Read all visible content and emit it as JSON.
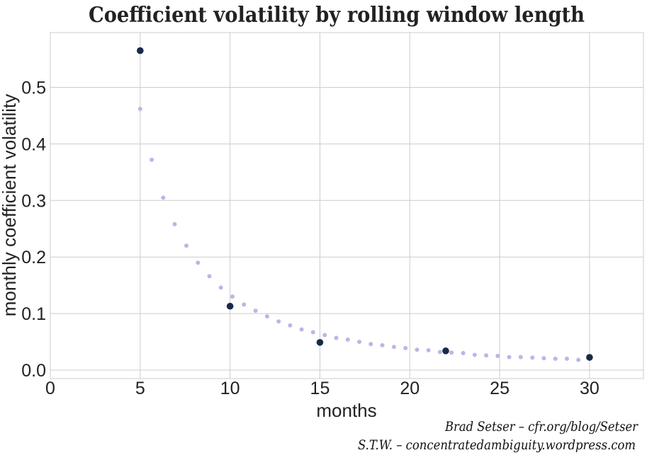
{
  "chart_data": {
    "type": "scatter",
    "title": "Coefficient volatility by rolling window length",
    "xlabel": "months",
    "ylabel": "monthly coefficient volatility",
    "xlim": [
      0,
      33
    ],
    "ylim": [
      -0.015,
      0.597
    ],
    "xticks": [
      0,
      5,
      10,
      15,
      20,
      25,
      30
    ],
    "yticks": [
      0.0,
      0.1,
      0.2,
      0.3,
      0.4,
      0.5
    ],
    "xtick_labels": [
      "0",
      "5",
      "10",
      "15",
      "20",
      "25",
      "30"
    ],
    "ytick_labels": [
      "0.0",
      "0.1",
      "0.2",
      "0.3",
      "0.4",
      "0.5"
    ],
    "grid": true,
    "legend": "none",
    "series": [
      {
        "color": "#bdb5e6",
        "x": [
          5.0,
          5.64,
          6.28,
          6.92,
          7.57,
          8.21,
          8.85,
          9.49,
          10.13,
          10.77,
          11.42,
          12.06,
          12.7,
          13.34,
          13.98,
          14.62,
          15.27,
          15.91,
          16.55,
          17.19,
          17.83,
          18.47,
          19.12,
          19.76,
          20.4,
          21.04,
          21.68,
          22.32,
          22.97,
          23.61,
          24.25,
          24.89,
          25.53,
          26.17,
          26.82,
          27.46,
          28.1,
          28.74,
          29.38
        ],
        "y": [
          0.462,
          0.372,
          0.305,
          0.258,
          0.22,
          0.19,
          0.166,
          0.146,
          0.13,
          0.116,
          0.105,
          0.095,
          0.086,
          0.079,
          0.072,
          0.067,
          0.062,
          0.057,
          0.054,
          0.05,
          0.046,
          0.044,
          0.041,
          0.039,
          0.036,
          0.035,
          0.032,
          0.031,
          0.03,
          0.027,
          0.026,
          0.025,
          0.023,
          0.023,
          0.022,
          0.021,
          0.02,
          0.02,
          0.018
        ]
      },
      {
        "color": "#182a48",
        "x": [
          5,
          10,
          15,
          22,
          30
        ],
        "y": [
          0.565,
          0.113,
          0.049,
          0.034,
          0.0225
        ]
      }
    ]
  },
  "credits": {
    "line1": "Brad Setser – cfr.org/blog/Setser",
    "line2": "S.T.W. – concentratedambiguity.wordpress.com"
  }
}
